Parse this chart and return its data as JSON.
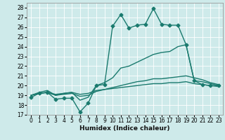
{
  "xlabel": "Humidex (Indice chaleur)",
  "xlim": [
    -0.5,
    23.5
  ],
  "ylim": [
    17,
    28.5
  ],
  "yticks": [
    17,
    18,
    19,
    20,
    21,
    22,
    23,
    24,
    25,
    26,
    27,
    28
  ],
  "xticks": [
    0,
    1,
    2,
    3,
    4,
    5,
    6,
    7,
    8,
    9,
    10,
    11,
    12,
    13,
    14,
    15,
    16,
    17,
    18,
    19,
    20,
    21,
    22,
    23
  ],
  "bg_color": "#ceeaea",
  "line_color": "#1a7a6e",
  "grid_color": "#ffffff",
  "series": [
    {
      "x": [
        0,
        1,
        2,
        3,
        4,
        5,
        6,
        7,
        8,
        9,
        10,
        11,
        12,
        13,
        14,
        15,
        16,
        17,
        18,
        19,
        20,
        21,
        22,
        23
      ],
      "y": [
        18.8,
        19.2,
        19.3,
        18.6,
        18.7,
        18.7,
        17.3,
        18.2,
        20.0,
        20.1,
        26.1,
        27.3,
        25.9,
        26.2,
        26.3,
        27.9,
        26.3,
        26.2,
        26.2,
        24.2,
        20.5,
        20.1,
        20.0,
        20.0
      ],
      "marker": "D",
      "markersize": 2.5,
      "linewidth": 1.0
    },
    {
      "x": [
        0,
        1,
        2,
        3,
        4,
        5,
        6,
        7,
        8,
        9,
        10,
        11,
        12,
        13,
        14,
        15,
        16,
        17,
        18,
        19,
        20,
        21,
        22,
        23
      ],
      "y": [
        19.0,
        19.3,
        19.5,
        19.0,
        19.2,
        19.3,
        18.5,
        18.8,
        20.0,
        20.3,
        20.8,
        21.8,
        22.0,
        22.4,
        22.8,
        23.2,
        23.4,
        23.5,
        24.0,
        24.2,
        20.5,
        20.4,
        20.2,
        20.0
      ],
      "marker": null,
      "markersize": 0,
      "linewidth": 1.0
    },
    {
      "x": [
        0,
        1,
        2,
        3,
        4,
        5,
        6,
        7,
        8,
        9,
        10,
        11,
        12,
        13,
        14,
        15,
        16,
        17,
        18,
        19,
        20,
        21,
        22,
        23
      ],
      "y": [
        19.0,
        19.2,
        19.3,
        19.0,
        19.1,
        19.2,
        18.9,
        19.0,
        19.4,
        19.6,
        19.8,
        20.0,
        20.2,
        20.4,
        20.5,
        20.7,
        20.7,
        20.8,
        20.9,
        21.0,
        20.8,
        20.6,
        20.3,
        20.1
      ],
      "marker": null,
      "markersize": 0,
      "linewidth": 1.0
    },
    {
      "x": [
        0,
        1,
        2,
        3,
        4,
        5,
        6,
        7,
        8,
        9,
        10,
        11,
        12,
        13,
        14,
        15,
        16,
        17,
        18,
        19,
        20,
        21,
        22,
        23
      ],
      "y": [
        19.0,
        19.2,
        19.3,
        19.1,
        19.2,
        19.3,
        19.1,
        19.2,
        19.5,
        19.6,
        19.7,
        19.8,
        19.9,
        20.0,
        20.1,
        20.2,
        20.2,
        20.3,
        20.3,
        20.4,
        20.2,
        20.1,
        20.0,
        19.9
      ],
      "marker": null,
      "markersize": 0,
      "linewidth": 1.0
    }
  ]
}
